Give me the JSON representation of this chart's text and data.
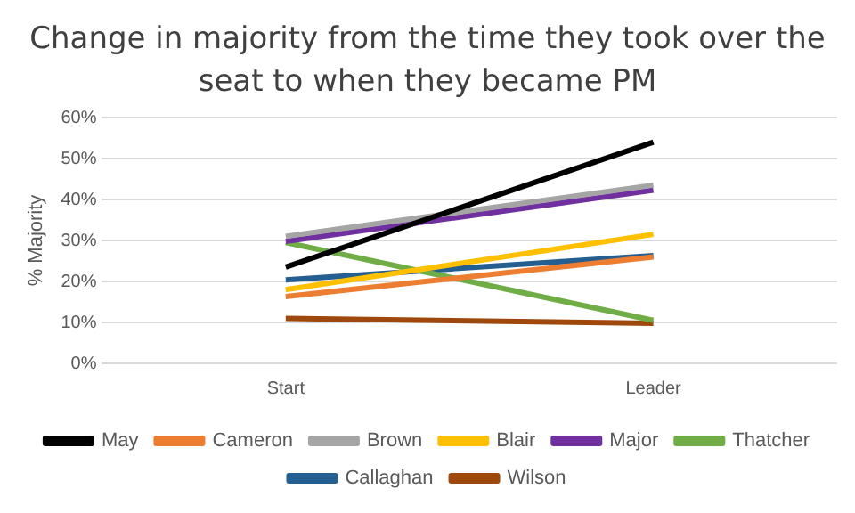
{
  "chart_data": {
    "type": "line",
    "title": "Change in majority from the time they took over the seat to when they became PM",
    "ylabel": "% Majority",
    "categories": [
      "Start",
      "Leader"
    ],
    "series": [
      {
        "name": "May",
        "color": "#000000",
        "values": [
          23.5,
          54
        ]
      },
      {
        "name": "Cameron",
        "color": "#ed7d31",
        "values": [
          16.3,
          26
        ]
      },
      {
        "name": "Brown",
        "color": "#a5a5a5",
        "values": [
          31,
          43.5
        ]
      },
      {
        "name": "Blair",
        "color": "#ffc000",
        "values": [
          18,
          31.5
        ]
      },
      {
        "name": "Major",
        "color": "#7030a0",
        "values": [
          29.8,
          42.3
        ]
      },
      {
        "name": "Thatcher",
        "color": "#70ad47",
        "values": [
          29.5,
          10.5
        ]
      },
      {
        "name": "Callaghan",
        "color": "#255e91",
        "values": [
          20.4,
          26.3
        ]
      },
      {
        "name": "Wilson",
        "color": "#9e480e",
        "values": [
          11,
          9.8
        ]
      }
    ],
    "ylim": [
      0,
      60
    ],
    "yticks": [
      {
        "value": 0,
        "label": "0%"
      },
      {
        "value": 10,
        "label": "10%"
      },
      {
        "value": 20,
        "label": "20%"
      },
      {
        "value": 30,
        "label": "30%"
      },
      {
        "value": 40,
        "label": "40%"
      },
      {
        "value": 50,
        "label": "50%"
      },
      {
        "value": 60,
        "label": "60%"
      }
    ],
    "grid": "y",
    "legend": "bottom",
    "marker": "none",
    "line_style": "solid"
  }
}
